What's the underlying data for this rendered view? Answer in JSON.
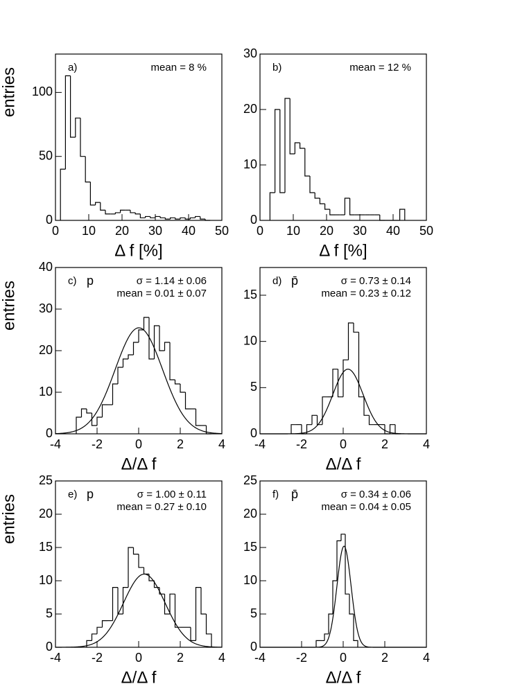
{
  "chart_data": [
    {
      "type": "histogram",
      "panel_label": "a)",
      "ylabel": "entries",
      "xlabel": "Δ f [%]",
      "annotations": [
        "mean = 8 %"
      ],
      "bins": [
        1.5,
        3,
        4.5,
        6,
        7.5,
        9,
        10.5,
        12,
        13.5,
        15,
        16.5,
        18,
        19.5,
        21,
        22.5,
        24,
        25.5,
        27,
        28.5,
        30,
        31.5,
        33,
        34.5,
        36,
        37.5,
        39,
        40.5,
        42,
        43.5,
        45,
        46.5
      ],
      "values": [
        40,
        113,
        65,
        80,
        50,
        30,
        12,
        14,
        8,
        5,
        5,
        6,
        8,
        8,
        6,
        5,
        2,
        3,
        2,
        3,
        2,
        1,
        2,
        1,
        2,
        1,
        2,
        3,
        1,
        0
      ],
      "color": "#000000",
      "xlim": [
        0,
        50
      ],
      "ylim": [
        0,
        130
      ],
      "xticks": [
        0,
        10,
        20,
        30,
        40,
        50
      ],
      "yticks": [
        0,
        50,
        100
      ]
    },
    {
      "type": "histogram",
      "panel_label": "b)",
      "xlabel": "Δ f [%]",
      "annotations": [
        "mean = 12 %"
      ],
      "bins": [
        3,
        4.5,
        6,
        7.5,
        9,
        10.5,
        12,
        13.5,
        15,
        16.5,
        18,
        19.5,
        21,
        22.5,
        24,
        25.5,
        27,
        28.5,
        30,
        31.5,
        33,
        34.5,
        36,
        37.5,
        39,
        40.5,
        42,
        43.5
      ],
      "values": [
        5,
        20,
        5,
        22,
        12,
        14,
        13,
        8,
        5,
        4,
        3,
        2,
        1,
        1,
        1,
        4,
        1,
        1,
        1,
        1,
        1,
        1,
        0,
        0,
        0,
        0,
        2
      ],
      "color": "#000000",
      "xlim": [
        0,
        50
      ],
      "ylim": [
        0,
        30
      ],
      "xticks": [
        0,
        10,
        20,
        30,
        40,
        50
      ],
      "yticks": [
        0,
        10,
        20,
        30
      ]
    },
    {
      "type": "histogram",
      "panel_label": "c)",
      "particle": "p",
      "ylabel": "entries",
      "xlabel": "Δ/Δ f",
      "annotations": [
        "σ = 1.14 ± 0.06",
        "mean = 0.01 ± 0.07"
      ],
      "bins": [
        -3,
        -2.75,
        -2.5,
        -2.25,
        -2,
        -1.75,
        -1.5,
        -1.25,
        -1,
        -0.75,
        -0.5,
        -0.25,
        0,
        0.25,
        0.5,
        0.75,
        1,
        1.25,
        1.5,
        1.75,
        2,
        2.25,
        2.5,
        2.75,
        3,
        3.25,
        3.5
      ],
      "values": [
        4,
        6,
        5,
        2,
        4,
        7,
        7,
        12,
        16,
        18,
        19,
        22,
        25,
        28,
        18,
        26,
        20,
        22,
        13,
        12,
        10,
        6,
        6,
        2,
        2,
        0
      ],
      "fit": {
        "amplitude": 25.5,
        "mean": 0.01,
        "sigma": 1.14
      },
      "color": "#000000",
      "xlim": [
        -4,
        4
      ],
      "ylim": [
        0,
        40
      ],
      "xticks": [
        -4,
        -2,
        0,
        2,
        4
      ],
      "yticks": [
        0,
        10,
        20,
        30,
        40
      ]
    },
    {
      "type": "histogram",
      "panel_label": "d)",
      "particle": "p̄",
      "xlabel": "Δ/Δ f",
      "annotations": [
        "σ = 0.73 ± 0.14",
        "mean = 0.23 ± 0.12"
      ],
      "bins": [
        -2.5,
        -2.25,
        -2,
        -1.75,
        -1.5,
        -1.25,
        -1,
        -0.75,
        -0.5,
        -0.25,
        0,
        0.25,
        0.5,
        0.75,
        1,
        1.25,
        1.5,
        1.75,
        2,
        2.25,
        2.5,
        2.75
      ],
      "values": [
        1,
        1,
        0,
        1,
        2,
        1,
        4,
        4,
        7,
        4,
        8,
        12,
        11,
        4,
        2,
        1,
        1,
        1,
        0,
        1,
        0
      ],
      "fit": {
        "amplitude": 7,
        "mean": 0.23,
        "sigma": 0.73
      },
      "color": "#000000",
      "xlim": [
        -4,
        4
      ],
      "ylim": [
        0,
        18
      ],
      "xticks": [
        -4,
        -2,
        0,
        2,
        4
      ],
      "yticks": [
        0,
        5,
        10,
        15
      ]
    },
    {
      "type": "histogram",
      "panel_label": "e)",
      "particle": "p",
      "ylabel": "entries",
      "xlabel": "Δ/Δ f",
      "annotations": [
        "σ = 1.00 ± 0.11",
        "mean = 0.27 ± 0.10"
      ],
      "bins": [
        -2.5,
        -2.25,
        -2,
        -1.75,
        -1.5,
        -1.25,
        -1,
        -0.75,
        -0.5,
        -0.25,
        0,
        0.25,
        0.5,
        0.75,
        1,
        1.25,
        1.5,
        1.75,
        2,
        2.25,
        2.5,
        2.75,
        3,
        3.25,
        3.5
      ],
      "values": [
        1,
        2,
        3,
        4,
        4,
        9,
        5,
        9,
        15,
        14,
        12,
        11,
        10,
        9,
        8,
        5,
        8,
        3,
        3,
        3,
        1,
        9,
        5,
        2
      ],
      "fit": {
        "amplitude": 11,
        "mean": 0.27,
        "sigma": 1.0
      },
      "color": "#000000",
      "xlim": [
        -4,
        4
      ],
      "ylim": [
        0,
        25
      ],
      "xticks": [
        -4,
        -2,
        0,
        2,
        4
      ],
      "yticks": [
        0,
        5,
        10,
        15,
        20,
        25
      ]
    },
    {
      "type": "histogram",
      "panel_label": "f)",
      "particle": "p̄",
      "xlabel": "Δ/Δ f",
      "annotations": [
        "σ = 0.34 ± 0.06",
        "mean = 0.04 ± 0.05"
      ],
      "bins": [
        -1.3,
        -1.1,
        -0.9,
        -0.7,
        -0.5,
        -0.3,
        -0.1,
        0.1,
        0.3,
        0.5,
        0.7
      ],
      "values": [
        1,
        1,
        2,
        5,
        10,
        16,
        17,
        8,
        5,
        1
      ],
      "fit": {
        "amplitude": 15.2,
        "mean": 0.04,
        "sigma": 0.34
      },
      "color": "#000000",
      "xlim": [
        -4,
        4
      ],
      "ylim": [
        0,
        25
      ],
      "xticks": [
        -4,
        -2,
        0,
        2,
        4
      ],
      "yticks": [
        0,
        5,
        10,
        15,
        20,
        25
      ]
    }
  ]
}
